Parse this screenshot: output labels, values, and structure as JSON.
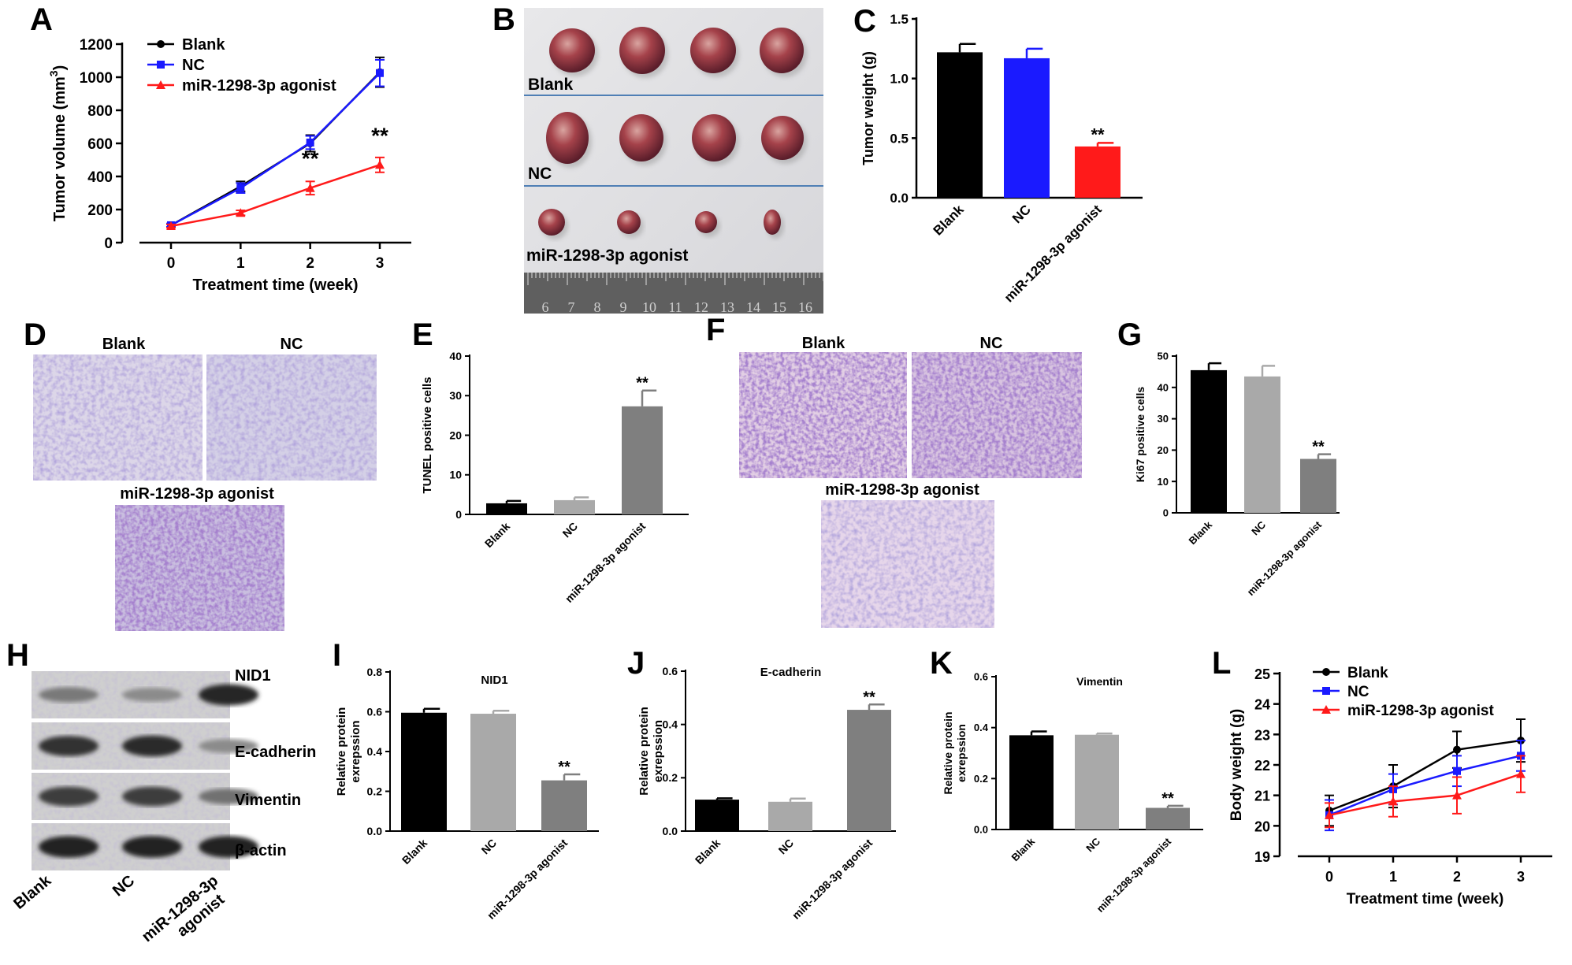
{
  "panels": {
    "A": "A",
    "B": "B",
    "C": "C",
    "D": "D",
    "E": "E",
    "F": "F",
    "G": "G",
    "H": "H",
    "I": "I",
    "J": "J",
    "K": "K",
    "L": "L"
  },
  "colors": {
    "blank": "#000000",
    "nc": "#1a1aff",
    "agonist": "#ff1a1a",
    "gray_light": "#a9a9a9",
    "gray_dark": "#7f7f7f"
  },
  "photo_labels": {
    "B_rows": [
      "Blank",
      "NC",
      "miR-1298-3p agonist"
    ],
    "D": {
      "left": "Blank",
      "right": "NC",
      "bottom": "miR-1298-3p agonist"
    },
    "F": {
      "left": "Blank",
      "right": "NC",
      "bottom": "miR-1298-3p agonist"
    }
  },
  "western_blot": {
    "bands": [
      "NID1",
      "E-cadherin",
      "Vimentin",
      "β-actin"
    ],
    "lanes": [
      "Blank",
      "NC",
      "miR-1298-3p agonist"
    ],
    "lane3_line1": "miR-1298-3p",
    "lane3_line2": "agonist",
    "intensity": [
      [
        0.45,
        0.35,
        0.92
      ],
      [
        0.85,
        0.9,
        0.35
      ],
      [
        0.8,
        0.8,
        0.5
      ],
      [
        0.95,
        0.95,
        0.95
      ]
    ]
  },
  "chart_data": [
    {
      "id": "A",
      "type": "line",
      "xlabel": "Treatment time (week)",
      "ylabel": "Tumor volume (mm³)",
      "ylabel_main": "Tumor volume (mm",
      "ylabel_sup": "3",
      "ylabel_close": ")",
      "xlim": [
        0,
        3
      ],
      "ylim": [
        0,
        1200
      ],
      "xticks": [
        "0",
        "1",
        "2",
        "3"
      ],
      "yticks": [
        "0",
        "200",
        "400",
        "600",
        "800",
        "1000",
        "1200"
      ],
      "legend": "top-left",
      "series": [
        {
          "name": "Blank",
          "marker": "circle",
          "x": [
            0,
            1,
            2,
            3
          ],
          "y": [
            105,
            340,
            600,
            1030
          ],
          "err": [
            10,
            30,
            50,
            90
          ]
        },
        {
          "name": "NC",
          "marker": "square",
          "x": [
            0,
            1,
            2,
            3
          ],
          "y": [
            105,
            330,
            605,
            1025
          ],
          "err": [
            10,
            30,
            40,
            80
          ]
        },
        {
          "name": "miR-1298-3p agonist",
          "marker": "triangle",
          "x": [
            0,
            1,
            2,
            3
          ],
          "y": [
            100,
            180,
            330,
            470
          ],
          "err": [
            10,
            15,
            40,
            45
          ]
        }
      ],
      "annotations": [
        {
          "x": 2,
          "y": 330,
          "text": "**"
        },
        {
          "x": 3,
          "y": 470,
          "text": "**"
        }
      ]
    },
    {
      "id": "C",
      "type": "bar",
      "ylabel": "Tumor weight (g)",
      "categories": [
        "Blank",
        "NC",
        "miR-1298-3p agonist"
      ],
      "values": [
        1.22,
        1.17,
        0.43
      ],
      "err": [
        0.07,
        0.08,
        0.03
      ],
      "ylim": [
        0,
        1.5
      ],
      "yticks": [
        "0.0",
        "0.5",
        "1.0",
        "1.5"
      ],
      "annotations": [
        "",
        "",
        "**"
      ]
    },
    {
      "id": "E",
      "type": "bar",
      "ylabel": "TUNEL positive cells",
      "categories": [
        "Blank",
        "NC",
        "miR-1298-3p agonist"
      ],
      "values": [
        2.8,
        3.6,
        27.3
      ],
      "err": [
        0.6,
        0.7,
        4.0
      ],
      "ylim": [
        0,
        40
      ],
      "yticks": [
        "0",
        "10",
        "20",
        "30",
        "40"
      ],
      "annotations": [
        "",
        "",
        "**"
      ]
    },
    {
      "id": "G",
      "type": "bar",
      "ylabel": "Ki67 positive cells",
      "categories": [
        "Blank",
        "NC",
        "miR-1298-3p agonist"
      ],
      "values": [
        45.5,
        43.5,
        17.2
      ],
      "err": [
        2.2,
        3.4,
        1.5
      ],
      "ylim": [
        0,
        50
      ],
      "yticks": [
        "0",
        "10",
        "20",
        "30",
        "40",
        "50"
      ],
      "annotations": [
        "",
        "",
        "**"
      ]
    },
    {
      "id": "I",
      "type": "bar",
      "title": "NID1",
      "ylabel": "Relative protein expression",
      "ylabel_line1": "Relative protein",
      "ylabel_line2": "exrepssion",
      "categories": [
        "Blank",
        "NC",
        "miR-1298-3p agonist"
      ],
      "values": [
        0.595,
        0.59,
        0.255
      ],
      "err": [
        0.02,
        0.015,
        0.03
      ],
      "ylim": [
        0,
        0.8
      ],
      "yticks": [
        "0.0",
        "0.2",
        "0.4",
        "0.6",
        "0.8"
      ],
      "annotations": [
        "",
        "",
        "**"
      ]
    },
    {
      "id": "J",
      "type": "bar",
      "title": "E-cadherin",
      "ylabel_line1": "Relative protein",
      "ylabel_line2": "exrepssion",
      "categories": [
        "Blank",
        "NC",
        "miR-1298-3p agonist"
      ],
      "values": [
        0.118,
        0.11,
        0.455
      ],
      "err": [
        0.005,
        0.012,
        0.02
      ],
      "ylim": [
        0,
        0.6
      ],
      "yticks": [
        "0.0",
        "0.2",
        "0.4",
        "0.6"
      ],
      "annotations": [
        "",
        "",
        "**"
      ]
    },
    {
      "id": "K",
      "type": "bar",
      "title": "Vimentin",
      "ylabel_line1": "Relative protein",
      "ylabel_line2": "exrepssion",
      "categories": [
        "Blank",
        "NC",
        "miR-1298-3p agonist"
      ],
      "values": [
        0.37,
        0.372,
        0.085
      ],
      "err": [
        0.015,
        0.005,
        0.008
      ],
      "ylim": [
        0,
        0.6
      ],
      "yticks": [
        "0.0",
        "0.2",
        "0.4",
        "0.6"
      ],
      "annotations": [
        "",
        "",
        "**"
      ]
    },
    {
      "id": "L",
      "type": "line",
      "xlabel": "Treatment time (week)",
      "ylabel": "Body weight (g)",
      "xlim": [
        0,
        3
      ],
      "ylim": [
        19,
        25
      ],
      "xticks": [
        "0",
        "1",
        "2",
        "3"
      ],
      "yticks": [
        "19",
        "20",
        "21",
        "22",
        "23",
        "24",
        "25"
      ],
      "legend": "top-left",
      "series": [
        {
          "name": "Blank",
          "marker": "circle",
          "x": [
            0,
            1,
            2,
            3
          ],
          "y": [
            20.5,
            21.3,
            22.5,
            22.8
          ],
          "err": [
            0.5,
            0.7,
            0.6,
            0.7
          ]
        },
        {
          "name": "NC",
          "marker": "square",
          "x": [
            0,
            1,
            2,
            3
          ],
          "y": [
            20.35,
            21.2,
            21.8,
            22.3
          ],
          "err": [
            0.5,
            0.5,
            0.5,
            0.5
          ]
        },
        {
          "name": "miR-1298-3p agonist",
          "marker": "triangle",
          "x": [
            0,
            1,
            2,
            3
          ],
          "y": [
            20.35,
            20.8,
            21.0,
            21.7
          ],
          "err": [
            0.4,
            0.5,
            0.6,
            0.6
          ]
        }
      ]
    }
  ]
}
